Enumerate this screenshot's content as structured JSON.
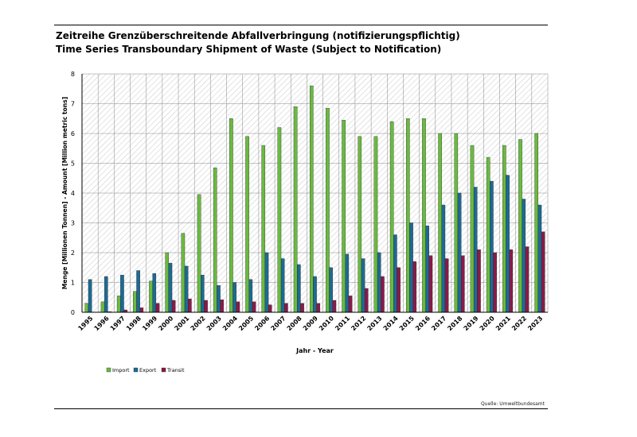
{
  "header": {
    "title_de": "Zeitreihe Grenzüberschreitende Abfallverbringung (notifizierungspflichtig)",
    "title_en": "Time Series Transboundary Shipment of Waste (Subject to Notification)"
  },
  "footer": {
    "source": "Quelle: Umweltbundesamt"
  },
  "colors": {
    "import": "#6aba3f",
    "export": "#1d6a93",
    "transit": "#8a1a4a",
    "hatch": "#bbbbbb"
  },
  "chart_data": {
    "type": "bar",
    "xlabel": "Jahr - Year",
    "ylabel": "Menge [Millionen Tonnen] - Amount [Million metric tons]",
    "ylim": [
      0,
      8
    ],
    "yticks": [
      "0",
      "1",
      "2",
      "3",
      "4",
      "5",
      "6",
      "7",
      "8"
    ],
    "grid": true,
    "legend_position": "bottom-left",
    "categories": [
      "1995",
      "1996",
      "1997",
      "1998",
      "1999",
      "2000",
      "2001",
      "2002",
      "2003",
      "2004",
      "2005",
      "2006",
      "2007",
      "2008",
      "2009",
      "2010",
      "2011",
      "2012",
      "2013",
      "2014",
      "2015",
      "2016",
      "2017",
      "2018",
      "2019",
      "2020",
      "2021",
      "2022",
      "2023"
    ],
    "series": [
      {
        "name": "Import",
        "values": [
          0.3,
          0.35,
          0.55,
          0.7,
          1.05,
          2.0,
          2.65,
          3.95,
          4.85,
          6.5,
          5.9,
          5.6,
          6.2,
          6.9,
          7.6,
          6.85,
          6.45,
          5.9,
          5.9,
          6.4,
          6.5,
          6.5,
          6.0,
          6.0,
          5.6,
          5.2,
          5.6,
          5.8,
          6.0
        ]
      },
      {
        "name": "Export",
        "values": [
          1.1,
          1.2,
          1.25,
          1.4,
          1.3,
          1.65,
          1.55,
          1.25,
          0.9,
          1.0,
          1.1,
          2.0,
          1.8,
          1.6,
          1.2,
          1.5,
          1.95,
          1.8,
          2.0,
          2.6,
          3.0,
          2.9,
          3.6,
          4.0,
          4.2,
          4.4,
          4.6,
          3.8,
          3.6
        ]
      },
      {
        "name": "Transit",
        "values": [
          0.0,
          0.02,
          0.08,
          0.15,
          0.3,
          0.4,
          0.45,
          0.4,
          0.42,
          0.35,
          0.35,
          0.25,
          0.3,
          0.3,
          0.3,
          0.4,
          0.55,
          0.8,
          1.2,
          1.5,
          1.7,
          1.9,
          1.8,
          1.9,
          2.1,
          2.0,
          2.1,
          2.2,
          2.7
        ]
      }
    ]
  }
}
